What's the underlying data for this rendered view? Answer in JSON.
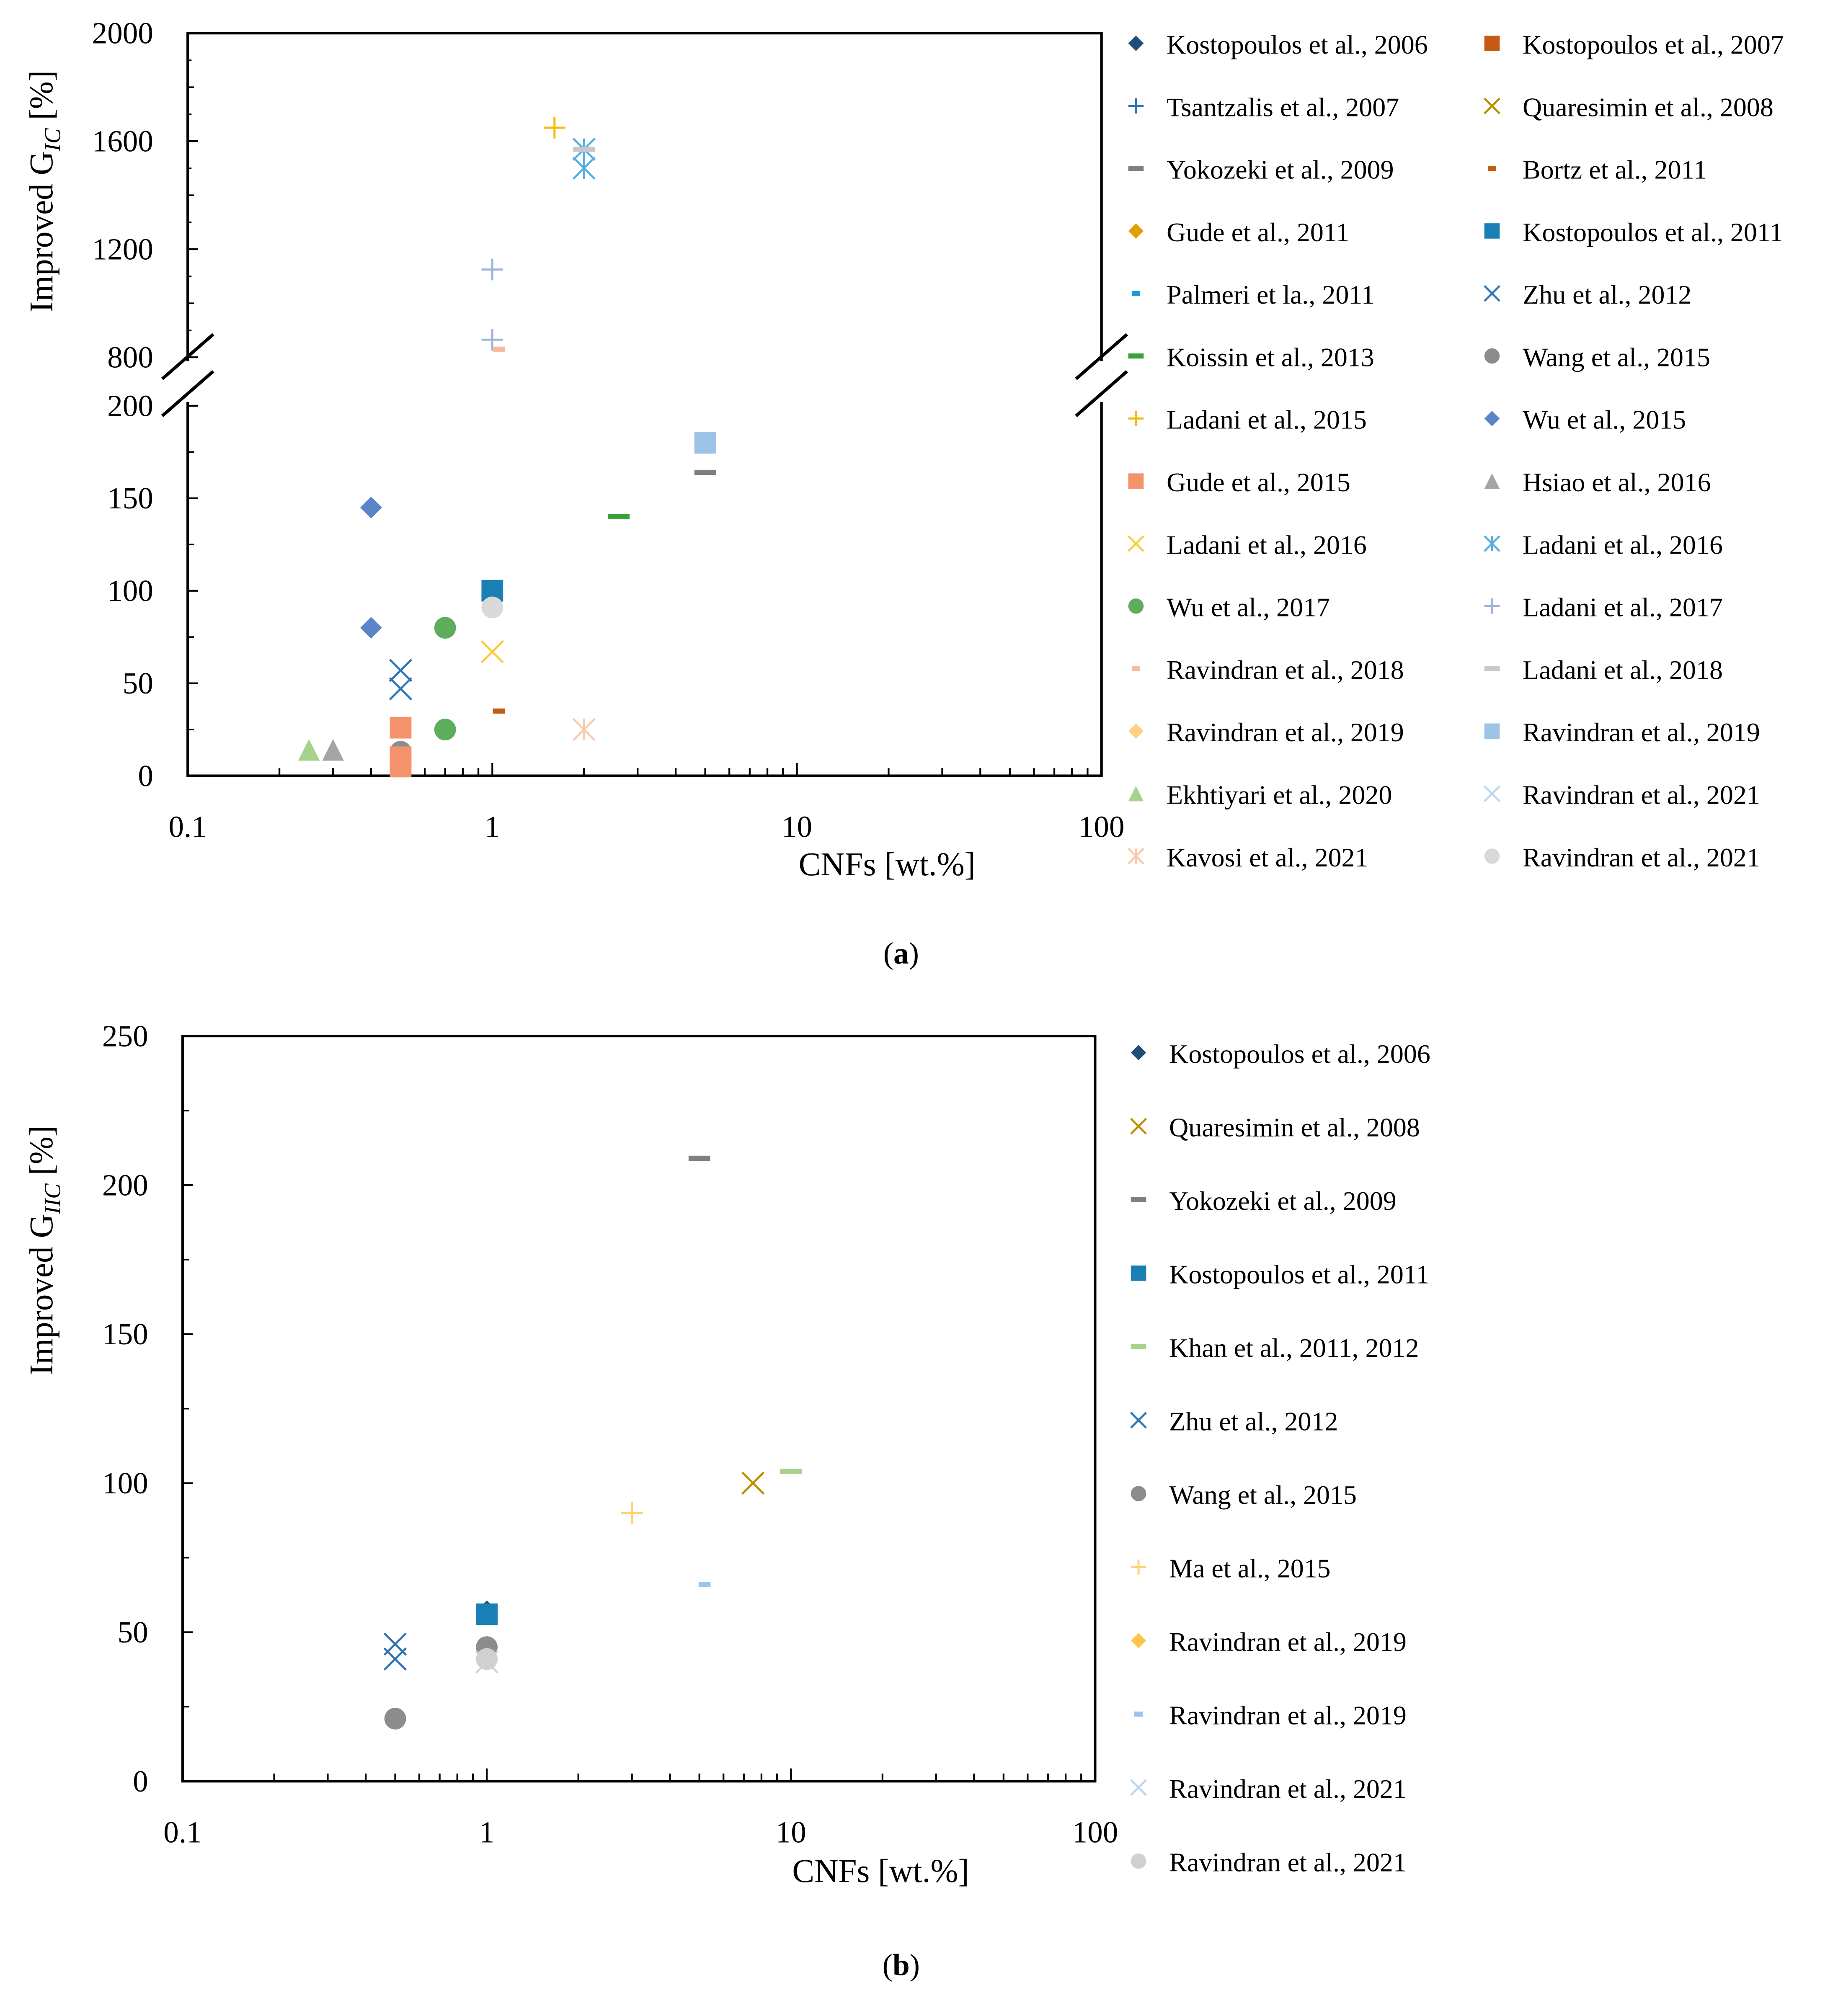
{
  "chart_data": [
    {
      "id": "a",
      "type": "scatter",
      "caption_letter": "a",
      "xlabel": "CNFs [wt.%]",
      "ylabel_prefix": "Improved G",
      "ylabel_sub": "IC",
      "ylabel_suffix": " [%]",
      "x_scale": "log",
      "xlim": [
        0.1,
        100
      ],
      "x_ticks": [
        {
          "v": 0.1,
          "label": "0.1"
        },
        {
          "v": 1,
          "label": "1"
        },
        {
          "v": 10,
          "label": "10"
        },
        {
          "v": 100,
          "label": "100"
        }
      ],
      "y_axis_broken": true,
      "y_lower_range": [
        0,
        200
      ],
      "y_upper_range": [
        800,
        2000
      ],
      "y_ticks": [
        {
          "v": 0,
          "label": "0"
        },
        {
          "v": 50,
          "label": "50"
        },
        {
          "v": 100,
          "label": "100"
        },
        {
          "v": 150,
          "label": "150"
        },
        {
          "v": 200,
          "label": "200"
        },
        {
          "v": 800,
          "label": "800"
        },
        {
          "v": 1200,
          "label": "1200"
        },
        {
          "v": 1600,
          "label": "1600"
        },
        {
          "v": 2000,
          "label": "2000"
        }
      ],
      "legend_columns": 2,
      "series": [
        {
          "name": "Kostopoulos et al., 2006",
          "marker": "diamond",
          "color": "#1f4e79",
          "points": []
        },
        {
          "name": "Kostopoulos et al., 2007",
          "marker": "square",
          "color": "#c55a11",
          "points": []
        },
        {
          "name": "Tsantzalis et al., 2007",
          "marker": "plus",
          "color": "#2e75b6",
          "points": []
        },
        {
          "name": "Quaresimin et al., 2008",
          "marker": "x",
          "color": "#bf8f00",
          "points": []
        },
        {
          "name": "Yokozeki et al., 2009",
          "marker": "dash",
          "color": "#7f7f7f",
          "points": [
            [
              5,
              164
            ]
          ]
        },
        {
          "name": "Bortz et al., 2011",
          "marker": "dash-short",
          "color": "#c55a11",
          "points": [
            [
              1.05,
              35
            ]
          ]
        },
        {
          "name": "Gude et al., 2011",
          "marker": "diamond",
          "color": "#e69d00",
          "points": []
        },
        {
          "name": "Kostopoulos et al., 2011",
          "marker": "square",
          "color": "#1a7fb5",
          "points": [
            [
              1,
              100
            ]
          ]
        },
        {
          "name": "Palmeri et la., 2011",
          "marker": "dash-short",
          "color": "#1a9bd7",
          "points": []
        },
        {
          "name": "Zhu et al., 2012",
          "marker": "x",
          "color": "#2e75b6",
          "points": [
            [
              0.5,
              57
            ],
            [
              0.5,
              47
            ]
          ]
        },
        {
          "name": "Koissin et al., 2013",
          "marker": "dash",
          "color": "#3aa03a",
          "points": [
            [
              2.6,
              140
            ]
          ]
        },
        {
          "name": "Wang et al., 2015",
          "marker": "circle",
          "color": "#8c8c8c",
          "points": [
            [
              0.5,
              13
            ]
          ]
        },
        {
          "name": "Ladani et al., 2015",
          "marker": "plus",
          "color": "#f5b800",
          "points": [
            [
              1.6,
              1650
            ]
          ]
        },
        {
          "name": "Wu et al., 2015",
          "marker": "diamond",
          "color": "#5b84c9",
          "points": [
            [
              0.4,
              145
            ],
            [
              0.4,
              80
            ]
          ]
        },
        {
          "name": "Gude et al., 2015",
          "marker": "square",
          "color": "#f4936b",
          "points": [
            [
              0.5,
              26
            ],
            [
              0.5,
              10
            ],
            [
              0.5,
              5
            ]
          ]
        },
        {
          "name": "Hsiao et al., 2016",
          "marker": "triangle",
          "color": "#a5a5a5",
          "points": [
            [
              0.3,
              14
            ]
          ]
        },
        {
          "name": "Ladani et al., 2016",
          "marker": "x",
          "color": "#ffc93c",
          "points": [
            [
              1,
              67
            ]
          ]
        },
        {
          "name": "Ladani et al., 2016",
          "marker": "asterisk",
          "color": "#5aaedc",
          "points": [
            [
              2,
              1570
            ],
            [
              2,
              1500
            ]
          ]
        },
        {
          "name": "Wu et al., 2017",
          "marker": "circle",
          "color": "#5cad5c",
          "points": [
            [
              0.7,
              80
            ],
            [
              0.7,
              25
            ]
          ]
        },
        {
          "name": "Ladani et al., 2017",
          "marker": "plus",
          "color": "#9db3dc",
          "points": [
            [
              1,
              1125
            ],
            [
              1,
              865
            ]
          ]
        },
        {
          "name": "Ravindran et al., 2018",
          "marker": "dash-short",
          "color": "#f7b9a0",
          "points": [
            [
              1.05,
              830
            ]
          ]
        },
        {
          "name": "Ladani et al., 2018",
          "marker": "dash",
          "color": "#c8c8c8",
          "points": [
            [
              2,
              1570
            ]
          ]
        },
        {
          "name": "Ravindran et al., 2019",
          "marker": "diamond",
          "color": "#ffd080",
          "points": []
        },
        {
          "name": "Ravindran et al., 2019",
          "marker": "square",
          "color": "#9dc3e6",
          "points": [
            [
              5,
              180
            ]
          ]
        },
        {
          "name": "Ekhtiyari et al., 2020",
          "marker": "triangle",
          "color": "#a9d18e",
          "points": [
            [
              0.25,
              14
            ]
          ]
        },
        {
          "name": "Ravindran et al., 2021",
          "marker": "x",
          "color": "#bdd7ee",
          "points": []
        },
        {
          "name": "Kavosi et al., 2021",
          "marker": "asterisk",
          "color": "#f8cbad",
          "points": [
            [
              2,
              25
            ]
          ]
        },
        {
          "name": "Ravindran et al., 2021",
          "marker": "circle",
          "color": "#d9d9d9",
          "points": [
            [
              1,
              91
            ]
          ]
        }
      ]
    },
    {
      "id": "b",
      "type": "scatter",
      "caption_letter": "b",
      "xlabel": "CNFs [wt.%]",
      "ylabel_prefix": "Improved G",
      "ylabel_sub": "IIC",
      "ylabel_suffix": " [%]",
      "x_scale": "log",
      "xlim": [
        0.1,
        100
      ],
      "x_ticks": [
        {
          "v": 0.1,
          "label": "0.1"
        },
        {
          "v": 1,
          "label": "1"
        },
        {
          "v": 10,
          "label": "10"
        },
        {
          "v": 100,
          "label": "100"
        }
      ],
      "ylim": [
        0,
        250
      ],
      "y_ticks": [
        {
          "v": 0,
          "label": "0"
        },
        {
          "v": 50,
          "label": "50"
        },
        {
          "v": 100,
          "label": "100"
        },
        {
          "v": 150,
          "label": "150"
        },
        {
          "v": 200,
          "label": "200"
        },
        {
          "v": 250,
          "label": "250"
        }
      ],
      "legend_columns": 1,
      "series": [
        {
          "name": "Kostopoulos et al., 2006",
          "marker": "diamond",
          "color": "#1f4e79",
          "points": [
            [
              1,
              57
            ]
          ]
        },
        {
          "name": "Quaresimin et al., 2008",
          "marker": "x",
          "color": "#bf8f00",
          "points": [
            [
              7.5,
              100
            ]
          ]
        },
        {
          "name": "Yokozeki et al., 2009",
          "marker": "dash",
          "color": "#7f7f7f",
          "points": [
            [
              5,
              209
            ]
          ]
        },
        {
          "name": "Kostopoulos et al., 2011",
          "marker": "square",
          "color": "#1a7fb5",
          "points": [
            [
              1,
              56
            ]
          ]
        },
        {
          "name": "Khan et al., 2011, 2012",
          "marker": "dash",
          "color": "#a9d18e",
          "points": [
            [
              10,
              104
            ]
          ]
        },
        {
          "name": "Zhu et al., 2012",
          "marker": "x",
          "color": "#2e75b6",
          "points": [
            [
              0.5,
              46
            ],
            [
              0.5,
              41
            ]
          ]
        },
        {
          "name": "Wang et al., 2015",
          "marker": "circle",
          "color": "#8c8c8c",
          "points": [
            [
              1,
              45
            ],
            [
              0.5,
              21
            ]
          ]
        },
        {
          "name": "Ma et al., 2015",
          "marker": "plus",
          "color": "#ffd27a",
          "points": [
            [
              3,
              90
            ]
          ]
        },
        {
          "name": "Ravindran et al., 2019",
          "marker": "diamond",
          "color": "#ffc44d",
          "points": []
        },
        {
          "name": "Ravindran et al., 2019",
          "marker": "dash-short",
          "color": "#9dc3e6",
          "points": [
            [
              5.2,
              66
            ]
          ]
        },
        {
          "name": "Ravindran et al., 2021",
          "marker": "x",
          "color": "#bdd7ee",
          "points": [
            [
              1,
              40
            ]
          ]
        },
        {
          "name": "Ravindran et al., 2021",
          "marker": "circle",
          "color": "#d0d0d0",
          "points": [
            [
              1,
              41
            ]
          ]
        }
      ]
    }
  ]
}
